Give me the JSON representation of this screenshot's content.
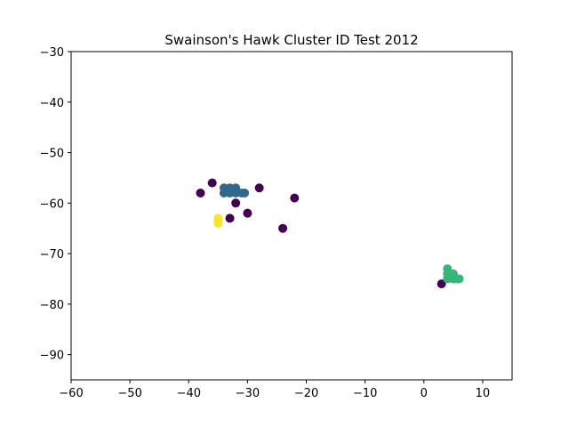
{
  "chart_data": {
    "type": "scatter",
    "title": "Swainson's Hawk Cluster ID Test 2012",
    "xlabel": "",
    "ylabel": "",
    "xlim": [
      -60,
      15
    ],
    "ylim": [
      -95,
      -30
    ],
    "xticks": [
      -60,
      -50,
      -40,
      -30,
      -20,
      -10,
      0,
      10
    ],
    "yticks": [
      -30,
      -40,
      -50,
      -60,
      -70,
      -80,
      -90
    ],
    "tick_labels": {
      "x": [
        "−60",
        "−50",
        "−40",
        "−30",
        "−20",
        "−10",
        "0",
        "10"
      ],
      "y": [
        "−30",
        "−40",
        "−50",
        "−60",
        "−70",
        "−80",
        "−90"
      ]
    },
    "grid": false,
    "legend": "none",
    "colors": {
      "cluster_0": "#440154",
      "cluster_1": "#31688e",
      "cluster_2": "#35b779",
      "cluster_3": "#fde725"
    },
    "series": [
      {
        "cluster": "cluster_0",
        "points": [
          [
            -36,
            -56
          ],
          [
            -38,
            -58
          ],
          [
            -28,
            -57
          ],
          [
            -22,
            -59
          ],
          [
            -32,
            -60
          ],
          [
            -30,
            -62
          ],
          [
            -33,
            -63
          ],
          [
            -24,
            -65
          ],
          [
            3,
            -76
          ]
        ]
      },
      {
        "cluster": "cluster_1",
        "points": [
          [
            -34,
            -57
          ],
          [
            -33,
            -57
          ],
          [
            -32,
            -57
          ],
          [
            -34,
            -58
          ],
          [
            -33,
            -58
          ],
          [
            -31,
            -58
          ],
          [
            -32,
            -58
          ],
          [
            -30.5,
            -58
          ]
        ]
      },
      {
        "cluster": "cluster_2",
        "points": [
          [
            4,
            -73
          ],
          [
            4,
            -74
          ],
          [
            4,
            -75
          ],
          [
            5,
            -74
          ],
          [
            5,
            -75
          ],
          [
            5.5,
            -75
          ],
          [
            6,
            -75
          ],
          [
            4.5,
            -74.5
          ]
        ]
      },
      {
        "cluster": "cluster_3",
        "points": [
          [
            -35,
            -63
          ],
          [
            -35,
            -63.5
          ],
          [
            -35,
            -64
          ]
        ]
      }
    ]
  }
}
